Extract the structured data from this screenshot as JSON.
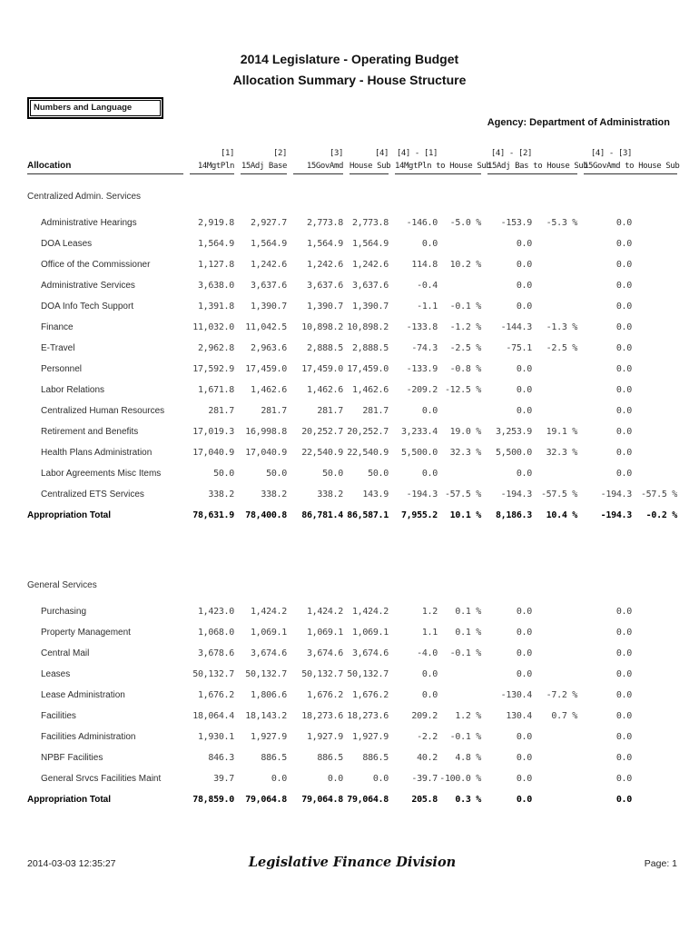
{
  "header": {
    "title": "2014 Legislature - Operating Budget",
    "subtitle": "Allocation Summary - House Structure",
    "filter_box": "Numbers and Language",
    "agency_label": "Agency: Department of Administration"
  },
  "table": {
    "allocation_header": "Allocation",
    "columns": [
      {
        "num": "[1]",
        "label": "14MgtPln"
      },
      {
        "num": "[2]",
        "label": "15Adj Base"
      },
      {
        "num": "[3]",
        "label": "15GovAmd"
      },
      {
        "num": "[4]",
        "label": "House Sub"
      },
      {
        "num": "[4] - [1]",
        "label": "14MgtPln to House Sub"
      },
      {
        "num": "[4] - [2]",
        "label": "15Adj Bas to House Sub"
      },
      {
        "num": "[4] - [3]",
        "label": "15GovAmd to House Sub"
      }
    ],
    "sections": [
      {
        "name": "Centralized Admin. Services",
        "rows": [
          {
            "label": "Administrative Hearings",
            "values": [
              "2,919.8",
              "2,927.7",
              "2,773.8",
              "2,773.8",
              "-146.0",
              "-5.0 %",
              "-153.9",
              "-5.3 %",
              "0.0",
              ""
            ]
          },
          {
            "label": "DOA Leases",
            "values": [
              "1,564.9",
              "1,564.9",
              "1,564.9",
              "1,564.9",
              "0.0",
              "",
              "0.0",
              "",
              "0.0",
              ""
            ]
          },
          {
            "label": "Office of the Commissioner",
            "values": [
              "1,127.8",
              "1,242.6",
              "1,242.6",
              "1,242.6",
              "114.8",
              "10.2 %",
              "0.0",
              "",
              "0.0",
              ""
            ]
          },
          {
            "label": "Administrative Services",
            "values": [
              "3,638.0",
              "3,637.6",
              "3,637.6",
              "3,637.6",
              "-0.4",
              "",
              "0.0",
              "",
              "0.0",
              ""
            ]
          },
          {
            "label": "DOA Info Tech Support",
            "values": [
              "1,391.8",
              "1,390.7",
              "1,390.7",
              "1,390.7",
              "-1.1",
              "-0.1 %",
              "0.0",
              "",
              "0.0",
              ""
            ]
          },
          {
            "label": "Finance",
            "values": [
              "11,032.0",
              "11,042.5",
              "10,898.2",
              "10,898.2",
              "-133.8",
              "-1.2 %",
              "-144.3",
              "-1.3 %",
              "0.0",
              ""
            ]
          },
          {
            "label": "E-Travel",
            "values": [
              "2,962.8",
              "2,963.6",
              "2,888.5",
              "2,888.5",
              "-74.3",
              "-2.5 %",
              "-75.1",
              "-2.5 %",
              "0.0",
              ""
            ]
          },
          {
            "label": "Personnel",
            "values": [
              "17,592.9",
              "17,459.0",
              "17,459.0",
              "17,459.0",
              "-133.9",
              "-0.8 %",
              "0.0",
              "",
              "0.0",
              ""
            ]
          },
          {
            "label": "Labor Relations",
            "values": [
              "1,671.8",
              "1,462.6",
              "1,462.6",
              "1,462.6",
              "-209.2",
              "-12.5 %",
              "0.0",
              "",
              "0.0",
              ""
            ]
          },
          {
            "label": "Centralized Human Resources",
            "values": [
              "281.7",
              "281.7",
              "281.7",
              "281.7",
              "0.0",
              "",
              "0.0",
              "",
              "0.0",
              ""
            ]
          },
          {
            "label": "Retirement and Benefits",
            "values": [
              "17,019.3",
              "16,998.8",
              "20,252.7",
              "20,252.7",
              "3,233.4",
              "19.0 %",
              "3,253.9",
              "19.1 %",
              "0.0",
              ""
            ]
          },
          {
            "label": "Health Plans Administration",
            "values": [
              "17,040.9",
              "17,040.9",
              "22,540.9",
              "22,540.9",
              "5,500.0",
              "32.3 %",
              "5,500.0",
              "32.3 %",
              "0.0",
              ""
            ]
          },
          {
            "label": "Labor Agreements Misc Items",
            "values": [
              "50.0",
              "50.0",
              "50.0",
              "50.0",
              "0.0",
              "",
              "0.0",
              "",
              "0.0",
              ""
            ]
          },
          {
            "label": "Centralized ETS Services",
            "values": [
              "338.2",
              "338.2",
              "338.2",
              "143.9",
              "-194.3",
              "-57.5 %",
              "-194.3",
              "-57.5 %",
              "-194.3",
              "-57.5 %"
            ]
          }
        ],
        "total": {
          "label": "Appropriation Total",
          "values": [
            "78,631.9",
            "78,400.8",
            "86,781.4",
            "86,587.1",
            "7,955.2",
            "10.1 %",
            "8,186.3",
            "10.4 %",
            "-194.3",
            "-0.2 %"
          ]
        }
      },
      {
        "name": "General Services",
        "rows": [
          {
            "label": "Purchasing",
            "values": [
              "1,423.0",
              "1,424.2",
              "1,424.2",
              "1,424.2",
              "1.2",
              "0.1 %",
              "0.0",
              "",
              "0.0",
              ""
            ]
          },
          {
            "label": "Property Management",
            "values": [
              "1,068.0",
              "1,069.1",
              "1,069.1",
              "1,069.1",
              "1.1",
              "0.1 %",
              "0.0",
              "",
              "0.0",
              ""
            ]
          },
          {
            "label": "Central Mail",
            "values": [
              "3,678.6",
              "3,674.6",
              "3,674.6",
              "3,674.6",
              "-4.0",
              "-0.1 %",
              "0.0",
              "",
              "0.0",
              ""
            ]
          },
          {
            "label": "Leases",
            "values": [
              "50,132.7",
              "50,132.7",
              "50,132.7",
              "50,132.7",
              "0.0",
              "",
              "0.0",
              "",
              "0.0",
              ""
            ]
          },
          {
            "label": "Lease Administration",
            "values": [
              "1,676.2",
              "1,806.6",
              "1,676.2",
              "1,676.2",
              "0.0",
              "",
              "-130.4",
              "-7.2 %",
              "0.0",
              ""
            ]
          },
          {
            "label": "Facilities",
            "values": [
              "18,064.4",
              "18,143.2",
              "18,273.6",
              "18,273.6",
              "209.2",
              "1.2 %",
              "130.4",
              "0.7 %",
              "0.0",
              ""
            ]
          },
          {
            "label": "Facilities Administration",
            "values": [
              "1,930.1",
              "1,927.9",
              "1,927.9",
              "1,927.9",
              "-2.2",
              "-0.1 %",
              "0.0",
              "",
              "0.0",
              ""
            ]
          },
          {
            "label": "NPBF Facilities",
            "values": [
              "846.3",
              "886.5",
              "886.5",
              "886.5",
              "40.2",
              "4.8 %",
              "0.0",
              "",
              "0.0",
              ""
            ]
          },
          {
            "label": "General Srvcs Facilities Maint",
            "values": [
              "39.7",
              "0.0",
              "0.0",
              "0.0",
              "-39.7",
              "-100.0 %",
              "0.0",
              "",
              "0.0",
              ""
            ]
          }
        ],
        "total": {
          "label": "Appropriation Total",
          "values": [
            "78,859.0",
            "79,064.8",
            "79,064.8",
            "79,064.8",
            "205.8",
            "0.3 %",
            "0.0",
            "",
            "0.0",
            ""
          ]
        }
      }
    ]
  },
  "footer": {
    "timestamp": "2014-03-03 12:35:27",
    "division": "Legislative Finance Division",
    "page": "Page: 1"
  }
}
